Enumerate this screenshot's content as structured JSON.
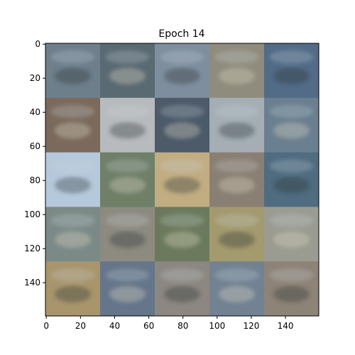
{
  "figure": {
    "title": "Epoch 14",
    "x_ticks": [
      "0",
      "20",
      "40",
      "60",
      "80",
      "100",
      "120",
      "140"
    ],
    "y_ticks": [
      "0",
      "20",
      "40",
      "60",
      "80",
      "100",
      "120",
      "140"
    ],
    "image_size": [
      160,
      160
    ],
    "tile_grid": [
      5,
      5
    ],
    "tiles": [
      [
        "#6e7f8c",
        "#5a6a72",
        "#7f8e9f",
        "#8f8c7d",
        "#526b87"
      ],
      [
        "#7b6a5c",
        "#b7bbbd",
        "#4c5a6a",
        "#a4aeb4",
        "#6a7f8f"
      ],
      [
        "#b6c9dc",
        "#6f7f68",
        "#c2ad83",
        "#8a7f73",
        "#4f6c80"
      ],
      [
        "#7b8a87",
        "#8d8a80",
        "#6b7a5c",
        "#a39a6d",
        "#9a9c91"
      ],
      [
        "#a8956c",
        "#65758a",
        "#8c8780",
        "#728292",
        "#8e8377"
      ]
    ]
  }
}
